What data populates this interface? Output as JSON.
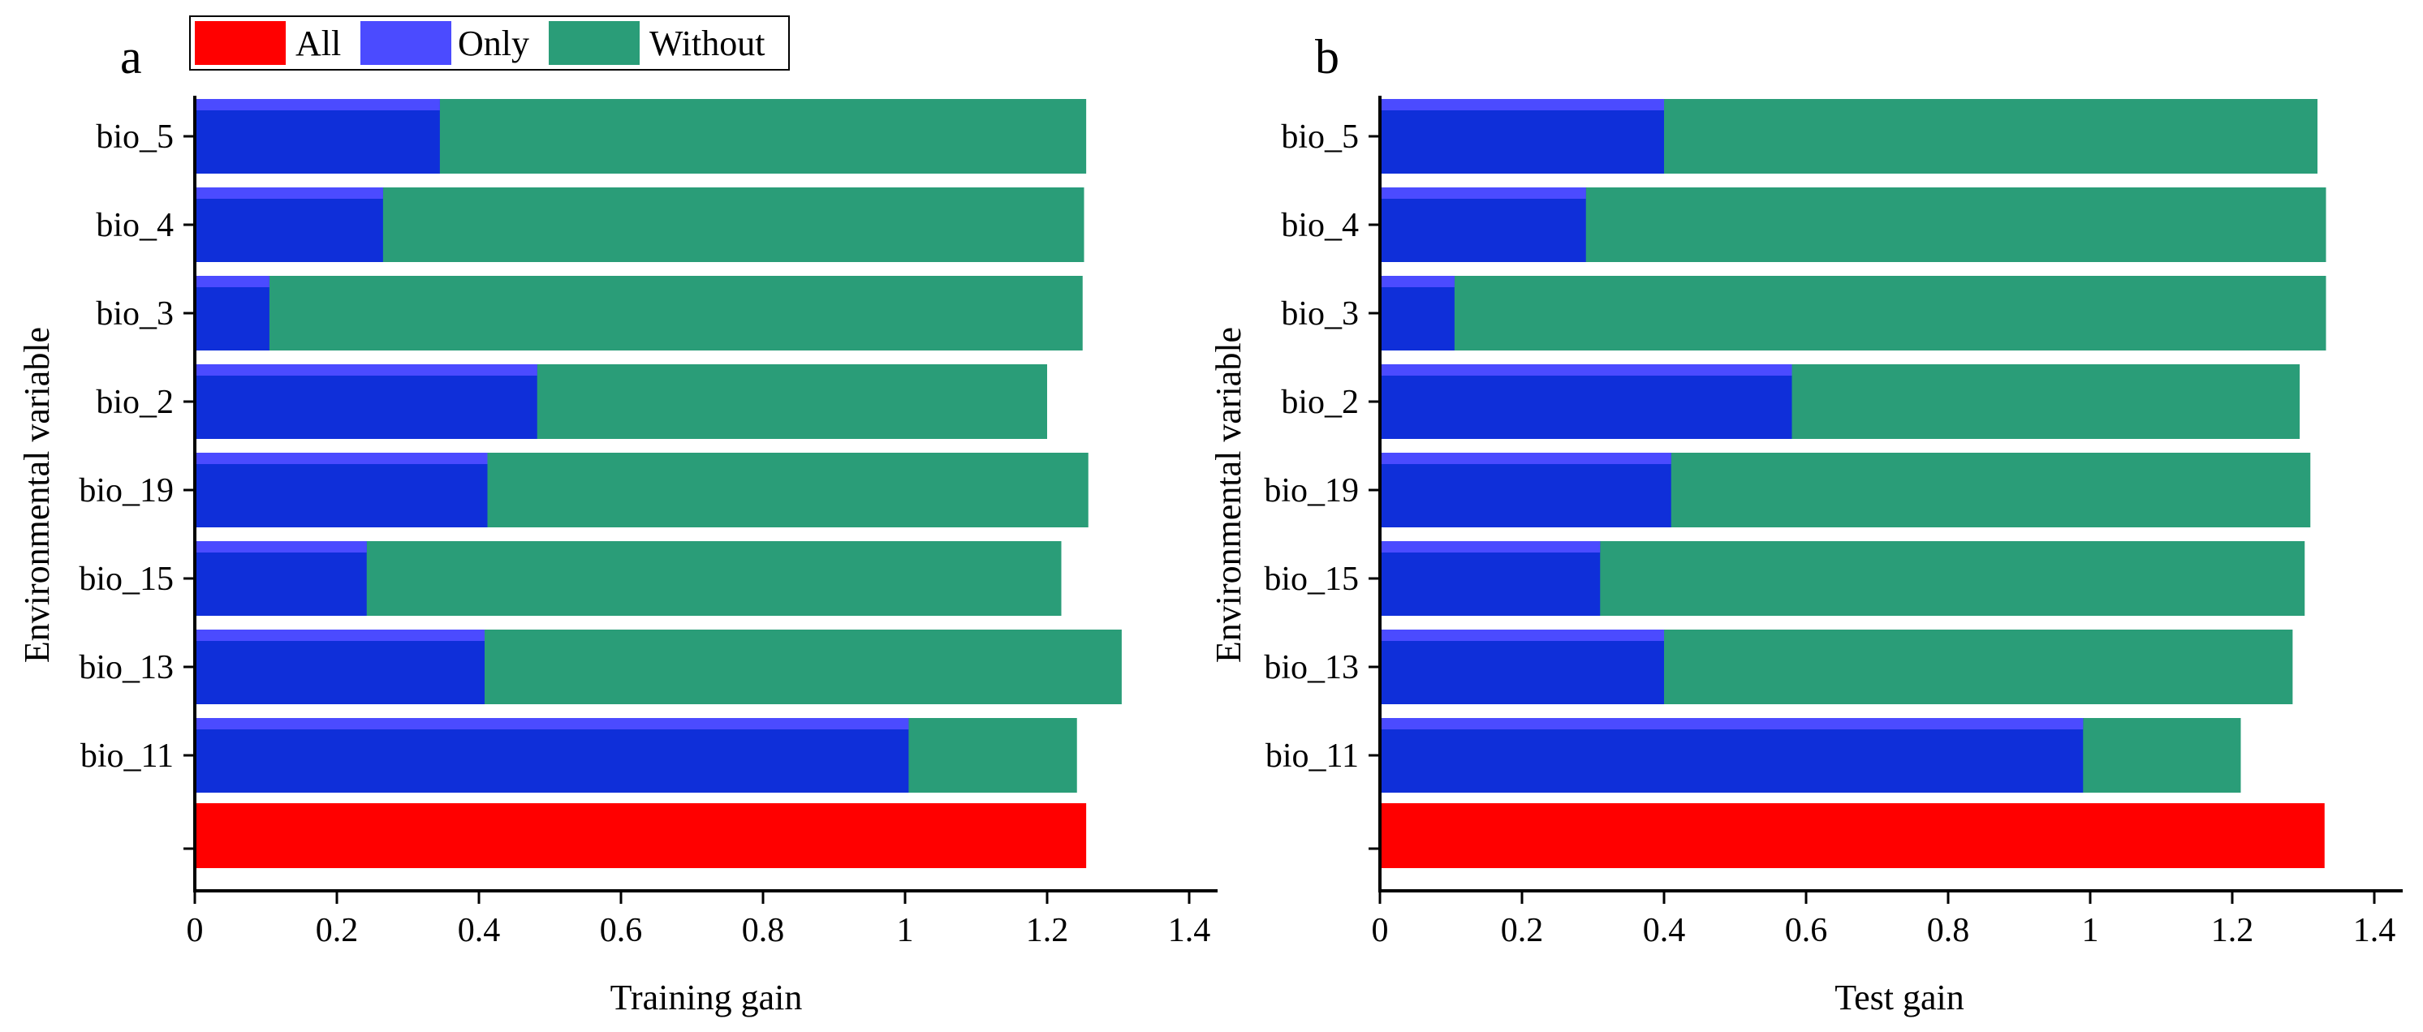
{
  "legend": {
    "items": [
      {
        "key": "all",
        "label": "All",
        "color": "#ff0000"
      },
      {
        "key": "only",
        "label": "Only",
        "color": "#4b4bff"
      },
      {
        "key": "without",
        "label": "Without",
        "color": "#2a9d78"
      }
    ]
  },
  "colors": {
    "all": "#ff0000",
    "only": "#4b4bff",
    "only_overlap": "#0f2fd9",
    "without": "#2a9d78"
  },
  "chart_data": [
    {
      "type": "bar",
      "orientation": "horizontal",
      "panel_label": "a",
      "title": "",
      "xlabel": "Training gain",
      "ylabel": "Environmental variable",
      "xlim": [
        0,
        1.45
      ],
      "xticks": [
        "0",
        "0.2",
        "0.4",
        "0.6",
        "0.8",
        "1",
        "1.2",
        "1.4"
      ],
      "xtick_values": [
        0,
        0.2,
        0.4,
        0.6,
        0.8,
        1.0,
        1.2,
        1.4
      ],
      "categories": [
        "bio_5",
        "bio_4",
        "bio_3",
        "bio_2",
        "bio_19",
        "bio_15",
        "bio_13",
        "bio_11"
      ],
      "series": [
        {
          "name": "Without",
          "values": [
            1.255,
            1.252,
            1.25,
            1.2,
            1.258,
            1.22,
            1.305,
            1.242
          ]
        },
        {
          "name": "Only",
          "values": [
            0.345,
            0.265,
            0.105,
            0.482,
            0.412,
            0.242,
            0.408,
            1.005
          ]
        }
      ],
      "all_value": 1.255
    },
    {
      "type": "bar",
      "orientation": "horizontal",
      "panel_label": "b",
      "title": "",
      "xlabel": "Test gain",
      "ylabel": "Environmental variable",
      "xlim": [
        0,
        1.45
      ],
      "xticks": [
        "0",
        "0.2",
        "0.4",
        "0.6",
        "0.8",
        "1",
        "1.2",
        "1.4"
      ],
      "xtick_values": [
        0,
        0.2,
        0.4,
        0.6,
        0.8,
        1.0,
        1.2,
        1.4
      ],
      "categories": [
        "bio_5",
        "bio_4",
        "bio_3",
        "bio_2",
        "bio_19",
        "bio_15",
        "bio_13",
        "bio_11"
      ],
      "series": [
        {
          "name": "Without",
          "values": [
            1.32,
            1.332,
            1.332,
            1.295,
            1.31,
            1.302,
            1.285,
            1.212
          ]
        },
        {
          "name": "Only",
          "values": [
            0.4,
            0.29,
            0.105,
            0.58,
            0.41,
            0.31,
            0.4,
            0.99
          ]
        }
      ],
      "all_value": 1.33
    }
  ]
}
